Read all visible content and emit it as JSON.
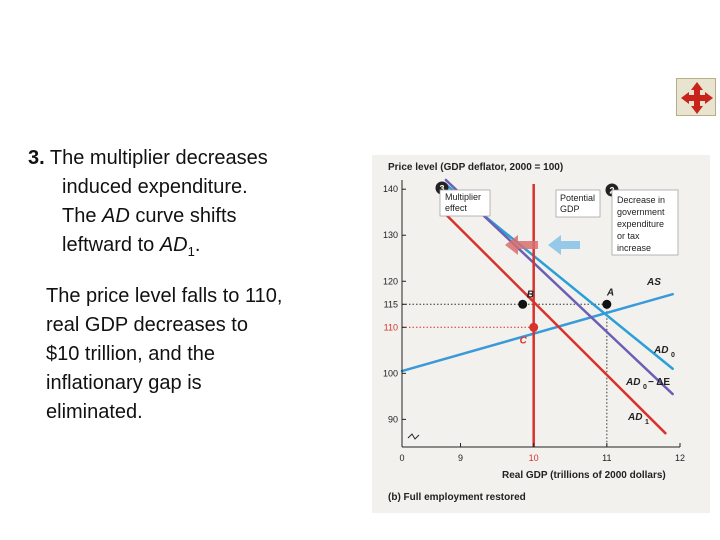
{
  "slide": {
    "point_number": "3.",
    "point_line1": "The multiplier decreases",
    "point_line2": "induced expenditure.",
    "point_line3_pre": "The ",
    "point_line3_em": "AD",
    "point_line3_post": " curve shifts",
    "point_line4_pre": "leftward to ",
    "point_line4_em": "AD",
    "point_line4_sub": "1",
    "point_line4_post": ".",
    "result_lines": [
      "The price level falls to 110,",
      "real GDP decreases to",
      "$10 trillion, and the",
      "inflationary gap is",
      "eliminated."
    ],
    "nav_icon": "four-way-arrows-icon"
  },
  "colors": {
    "potential_gdp": "#d8322c",
    "as_curve": "#3a9ad9",
    "ad0_curve": "#2a9fd8",
    "ad0_minus_curve": "#6b5fb5",
    "ad1_curve": "#d8322c",
    "multiplier_arrow": "#d86f6f",
    "decrease_arrow": "#8cc3e8",
    "panel_bg": "#f2f1ee",
    "nav_red": "#c8241b"
  },
  "chart_data": {
    "type": "line",
    "ylabel": "Price level (GDP deflator, 2000 = 100)",
    "xlabel": "Real GDP (trillions of 2000 dollars)",
    "caption": "(b) Full employment restored",
    "x_ticks": [
      "0",
      "9",
      "10",
      "11",
      "12"
    ],
    "y_ticks": [
      "90",
      "100",
      "110",
      "115",
      "120",
      "130",
      "140"
    ],
    "xlim": [
      8.2,
      12
    ],
    "ylim": [
      84,
      142
    ],
    "series": [
      {
        "name": "AS",
        "points": [
          [
            8.2,
            100.5
          ],
          [
            11.9,
            117.2
          ]
        ]
      },
      {
        "name": "AD0",
        "points": [
          [
            8.8,
            141
          ],
          [
            11.9,
            101
          ]
        ]
      },
      {
        "name": "AD0 − ΔE",
        "points": [
          [
            8.8,
            142
          ],
          [
            11.9,
            95.5
          ]
        ]
      },
      {
        "name": "AD1",
        "points": [
          [
            8.8,
            134.5
          ],
          [
            11.8,
            87
          ]
        ]
      },
      {
        "name": "Potential GDP",
        "x": 10
      }
    ],
    "points": [
      {
        "label": "A",
        "x": 11,
        "y": 115
      },
      {
        "label": "B",
        "x": 9.85,
        "y": 115
      },
      {
        "label": "C",
        "x": 10,
        "y": 110
      }
    ],
    "annotations": {
      "marker3": "3",
      "multiplier": [
        "Multiplier",
        "effect"
      ],
      "marker2": "2",
      "potential": [
        "Potential",
        "GDP"
      ],
      "decrease": [
        "Decrease in",
        "government",
        "expenditure",
        "or tax",
        "increase"
      ],
      "as_label": "AS",
      "ad0_label": "AD",
      "ad0_sub": "0",
      "ad0m_label": "AD",
      "ad0m_sub": "0",
      "ad0m_rest": "− ΔE",
      "ad1_label": "AD",
      "ad1_sub": "1"
    }
  }
}
